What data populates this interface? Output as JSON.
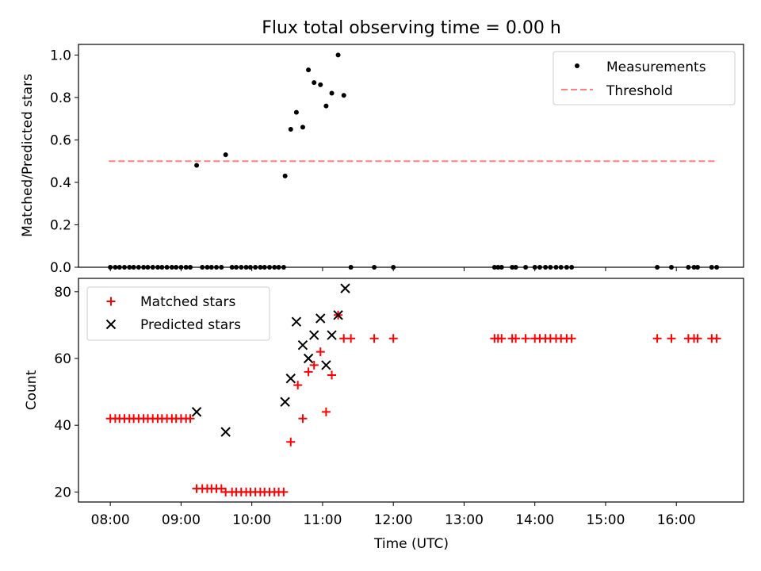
{
  "chart_data": {
    "title": "Flux total observing time = 0.00 h",
    "xlabel": "Time (UTC)",
    "x_tick_labels": [
      "08:00",
      "09:00",
      "10:00",
      "11:00",
      "12:00",
      "13:00",
      "14:00",
      "15:00",
      "16:00"
    ],
    "x_tick_hours": [
      8,
      9,
      10,
      11,
      12,
      13,
      14,
      15,
      16
    ],
    "xlim_hours": [
      7.55,
      16.95
    ],
    "top": {
      "type": "scatter",
      "ylabel": "Matched/Predicted stars",
      "ylim": [
        0,
        1.05
      ],
      "y_ticks": [
        0,
        0.2,
        0.4,
        0.6,
        0.8,
        1.0
      ],
      "y_tick_labels": [
        "0.0",
        "0.2",
        "0.4",
        "0.6",
        "0.8",
        "1.0"
      ],
      "legend_position": "upper right",
      "series": [
        {
          "name": "Measurements",
          "marker": "dot",
          "color": "#000000",
          "points": [
            [
              8.0,
              0
            ],
            [
              8.07,
              0
            ],
            [
              8.13,
              0
            ],
            [
              8.2,
              0
            ],
            [
              8.27,
              0
            ],
            [
              8.33,
              0
            ],
            [
              8.4,
              0
            ],
            [
              8.47,
              0
            ],
            [
              8.53,
              0
            ],
            [
              8.6,
              0
            ],
            [
              8.67,
              0
            ],
            [
              8.73,
              0
            ],
            [
              8.8,
              0
            ],
            [
              8.87,
              0
            ],
            [
              8.93,
              0
            ],
            [
              9.0,
              0
            ],
            [
              9.07,
              0
            ],
            [
              9.13,
              0
            ],
            [
              9.22,
              0.48
            ],
            [
              9.3,
              0
            ],
            [
              9.37,
              0
            ],
            [
              9.43,
              0
            ],
            [
              9.5,
              0
            ],
            [
              9.57,
              0
            ],
            [
              9.63,
              0.53
            ],
            [
              9.72,
              0
            ],
            [
              9.78,
              0
            ],
            [
              9.85,
              0
            ],
            [
              9.92,
              0
            ],
            [
              9.98,
              0
            ],
            [
              10.05,
              0
            ],
            [
              10.12,
              0
            ],
            [
              10.18,
              0
            ],
            [
              10.25,
              0
            ],
            [
              10.32,
              0
            ],
            [
              10.38,
              0
            ],
            [
              10.45,
              0
            ],
            [
              10.47,
              0.43
            ],
            [
              10.55,
              0.65
            ],
            [
              10.63,
              0.73
            ],
            [
              10.72,
              0.66
            ],
            [
              10.8,
              0.93
            ],
            [
              10.88,
              0.87
            ],
            [
              10.97,
              0.86
            ],
            [
              11.05,
              0.76
            ],
            [
              11.13,
              0.82
            ],
            [
              11.22,
              1.0
            ],
            [
              11.3,
              0.81
            ],
            [
              11.4,
              0
            ],
            [
              11.73,
              0
            ],
            [
              12.0,
              0
            ],
            [
              13.43,
              0
            ],
            [
              13.48,
              0
            ],
            [
              13.53,
              0
            ],
            [
              13.68,
              0
            ],
            [
              13.73,
              0
            ],
            [
              13.87,
              0
            ],
            [
              14.0,
              0
            ],
            [
              14.07,
              0
            ],
            [
              14.15,
              0
            ],
            [
              14.22,
              0
            ],
            [
              14.3,
              0
            ],
            [
              14.37,
              0
            ],
            [
              14.45,
              0
            ],
            [
              14.52,
              0
            ],
            [
              15.73,
              0
            ],
            [
              15.93,
              0
            ],
            [
              16.17,
              0
            ],
            [
              16.25,
              0
            ],
            [
              16.3,
              0
            ],
            [
              16.5,
              0
            ],
            [
              16.57,
              0
            ]
          ]
        },
        {
          "name": "Threshold",
          "line_style": "dashed",
          "color": "#ff7f7f",
          "x": [
            7.98,
            16.55
          ],
          "y": [
            0.5,
            0.5
          ]
        }
      ]
    },
    "bottom": {
      "type": "scatter",
      "ylabel": "Count",
      "ylim": [
        17,
        84
      ],
      "y_ticks": [
        20,
        40,
        60,
        80
      ],
      "y_tick_labels": [
        "20",
        "40",
        "60",
        "80"
      ],
      "legend_position": "upper left",
      "series": [
        {
          "name": "Matched stars",
          "marker": "plus",
          "color": "#ff0000",
          "points": [
            [
              8.0,
              42
            ],
            [
              8.07,
              42
            ],
            [
              8.13,
              42
            ],
            [
              8.2,
              42
            ],
            [
              8.27,
              42
            ],
            [
              8.33,
              42
            ],
            [
              8.4,
              42
            ],
            [
              8.47,
              42
            ],
            [
              8.53,
              42
            ],
            [
              8.6,
              42
            ],
            [
              8.67,
              42
            ],
            [
              8.73,
              42
            ],
            [
              8.8,
              42
            ],
            [
              8.87,
              42
            ],
            [
              8.93,
              42
            ],
            [
              9.0,
              42
            ],
            [
              9.07,
              42
            ],
            [
              9.13,
              42
            ],
            [
              9.22,
              21
            ],
            [
              9.3,
              21
            ],
            [
              9.37,
              21
            ],
            [
              9.43,
              21
            ],
            [
              9.5,
              21
            ],
            [
              9.57,
              21
            ],
            [
              9.63,
              20
            ],
            [
              9.72,
              20
            ],
            [
              9.78,
              20
            ],
            [
              9.85,
              20
            ],
            [
              9.92,
              20
            ],
            [
              9.98,
              20
            ],
            [
              10.05,
              20
            ],
            [
              10.12,
              20
            ],
            [
              10.18,
              20
            ],
            [
              10.25,
              20
            ],
            [
              10.32,
              20
            ],
            [
              10.38,
              20
            ],
            [
              10.45,
              20
            ],
            [
              10.55,
              35
            ],
            [
              10.65,
              52
            ],
            [
              10.72,
              42
            ],
            [
              10.8,
              56
            ],
            [
              10.88,
              58
            ],
            [
              10.97,
              62
            ],
            [
              11.05,
              44
            ],
            [
              11.13,
              55
            ],
            [
              11.22,
              73
            ],
            [
              11.3,
              66
            ],
            [
              11.4,
              66
            ],
            [
              11.73,
              66
            ],
            [
              12.0,
              66
            ],
            [
              13.43,
              66
            ],
            [
              13.48,
              66
            ],
            [
              13.53,
              66
            ],
            [
              13.68,
              66
            ],
            [
              13.73,
              66
            ],
            [
              13.87,
              66
            ],
            [
              14.0,
              66
            ],
            [
              14.07,
              66
            ],
            [
              14.15,
              66
            ],
            [
              14.22,
              66
            ],
            [
              14.3,
              66
            ],
            [
              14.37,
              66
            ],
            [
              14.45,
              66
            ],
            [
              14.52,
              66
            ],
            [
              15.73,
              66
            ],
            [
              15.93,
              66
            ],
            [
              16.17,
              66
            ],
            [
              16.25,
              66
            ],
            [
              16.3,
              66
            ],
            [
              16.5,
              66
            ],
            [
              16.57,
              66
            ]
          ]
        },
        {
          "name": "Predicted stars",
          "marker": "x",
          "color": "#000000",
          "points": [
            [
              9.22,
              44
            ],
            [
              9.63,
              38
            ],
            [
              10.47,
              47
            ],
            [
              10.55,
              54
            ],
            [
              10.63,
              71
            ],
            [
              10.72,
              64
            ],
            [
              10.8,
              60
            ],
            [
              10.88,
              67
            ],
            [
              10.97,
              72
            ],
            [
              11.05,
              58
            ],
            [
              11.13,
              67
            ],
            [
              11.22,
              73
            ],
            [
              11.32,
              81
            ]
          ]
        }
      ]
    }
  }
}
